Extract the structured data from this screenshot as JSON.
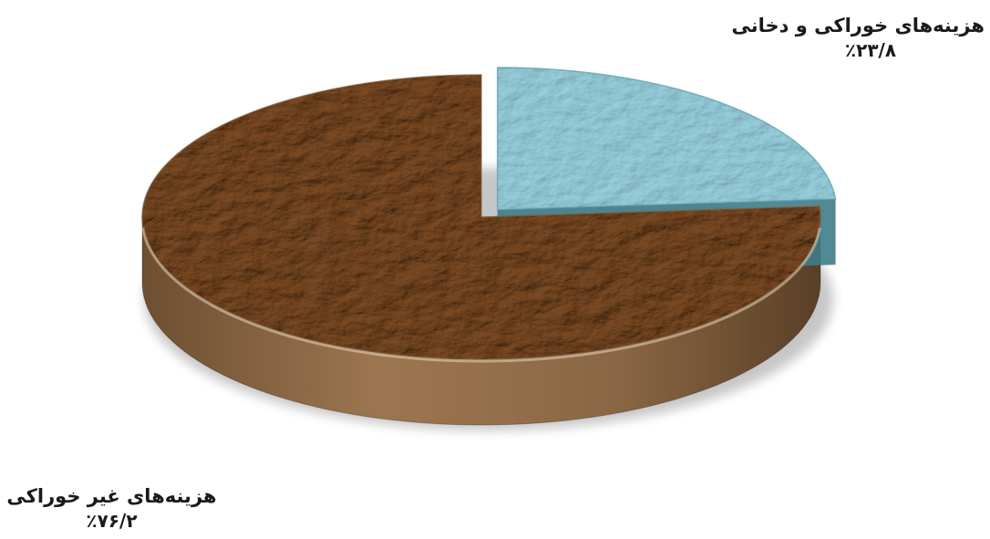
{
  "chart_data": {
    "type": "pie",
    "style": "3d-exploded",
    "categories": [
      "هزینه‌های خوراکی و دخانی",
      "هزینه‌های غیر خوراکی"
    ],
    "values": [
      23.8,
      76.2
    ],
    "value_labels": [
      "٪۲۳/۸",
      "٪۷۶/۲"
    ],
    "colors": [
      "#a9dbe6",
      "#a57f57"
    ],
    "exploded_slice": "هزینه‌های خوراکی و دخانی"
  }
}
